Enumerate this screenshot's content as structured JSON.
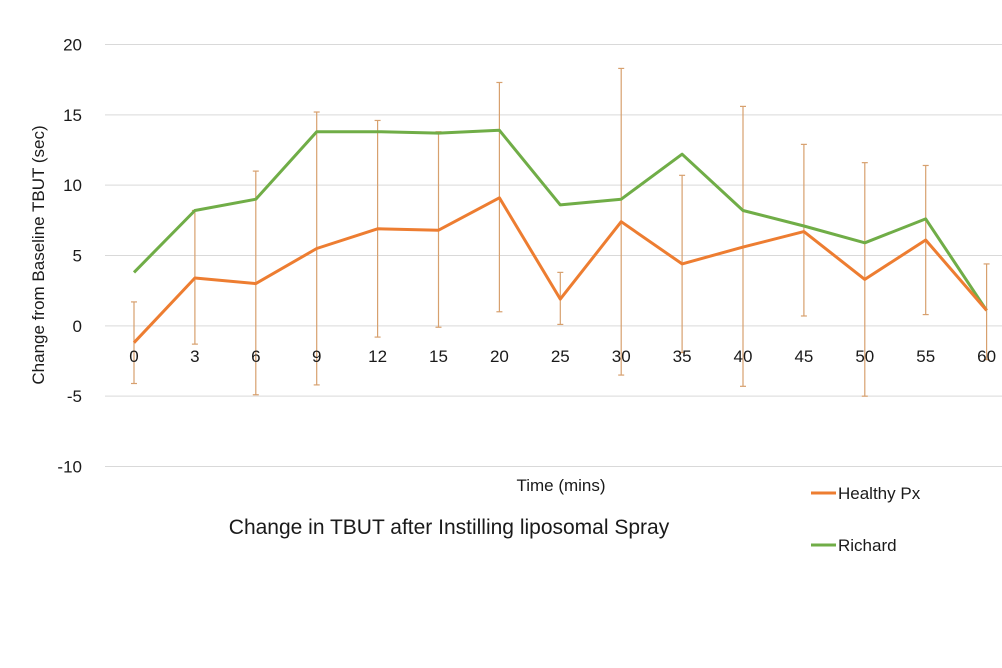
{
  "chart_data": {
    "type": "line",
    "title": "Change in TBUT after Instilling liposomal Spray",
    "xlabel": "Time (mins)",
    "ylabel": "Change from Baseline TBUT (sec)",
    "ylim": [
      -10,
      20
    ],
    "yticks": [
      20,
      15,
      10,
      5,
      0,
      -5,
      -10
    ],
    "grid": true,
    "legend_position": "bottom-right",
    "categories": [
      "0",
      "3",
      "6",
      "9",
      "12",
      "15",
      "20",
      "25",
      "30",
      "35",
      "40",
      "45",
      "50",
      "55",
      "60"
    ],
    "series": [
      {
        "name": "Healthy Px",
        "color": "#ED7D31",
        "values": [
          -1.2,
          3.4,
          3.0,
          5.5,
          6.9,
          6.8,
          9.1,
          1.9,
          7.4,
          4.4,
          5.6,
          6.7,
          3.3,
          6.1,
          1.1
        ],
        "error_bars": [
          [
            -4.1,
            1.7
          ],
          [
            -1.3,
            8.2
          ],
          [
            -4.9,
            11.0
          ],
          [
            -4.2,
            15.2
          ],
          [
            -0.8,
            14.6
          ],
          [
            -0.1,
            13.8
          ],
          [
            1.0,
            17.3
          ],
          [
            0.1,
            3.8
          ],
          [
            -3.5,
            18.3
          ],
          [
            -1.9,
            10.7
          ],
          [
            -4.3,
            15.6
          ],
          [
            0.7,
            12.9
          ],
          [
            -5.0,
            11.6
          ],
          [
            0.8,
            11.4
          ],
          [
            -2.4,
            4.4
          ]
        ]
      },
      {
        "name": "Richard",
        "color": "#70AD47",
        "values": [
          3.8,
          8.2,
          9.0,
          13.8,
          13.8,
          13.7,
          13.9,
          8.6,
          9.0,
          12.2,
          8.2,
          7.1,
          5.9,
          7.6,
          1.1
        ]
      }
    ]
  }
}
